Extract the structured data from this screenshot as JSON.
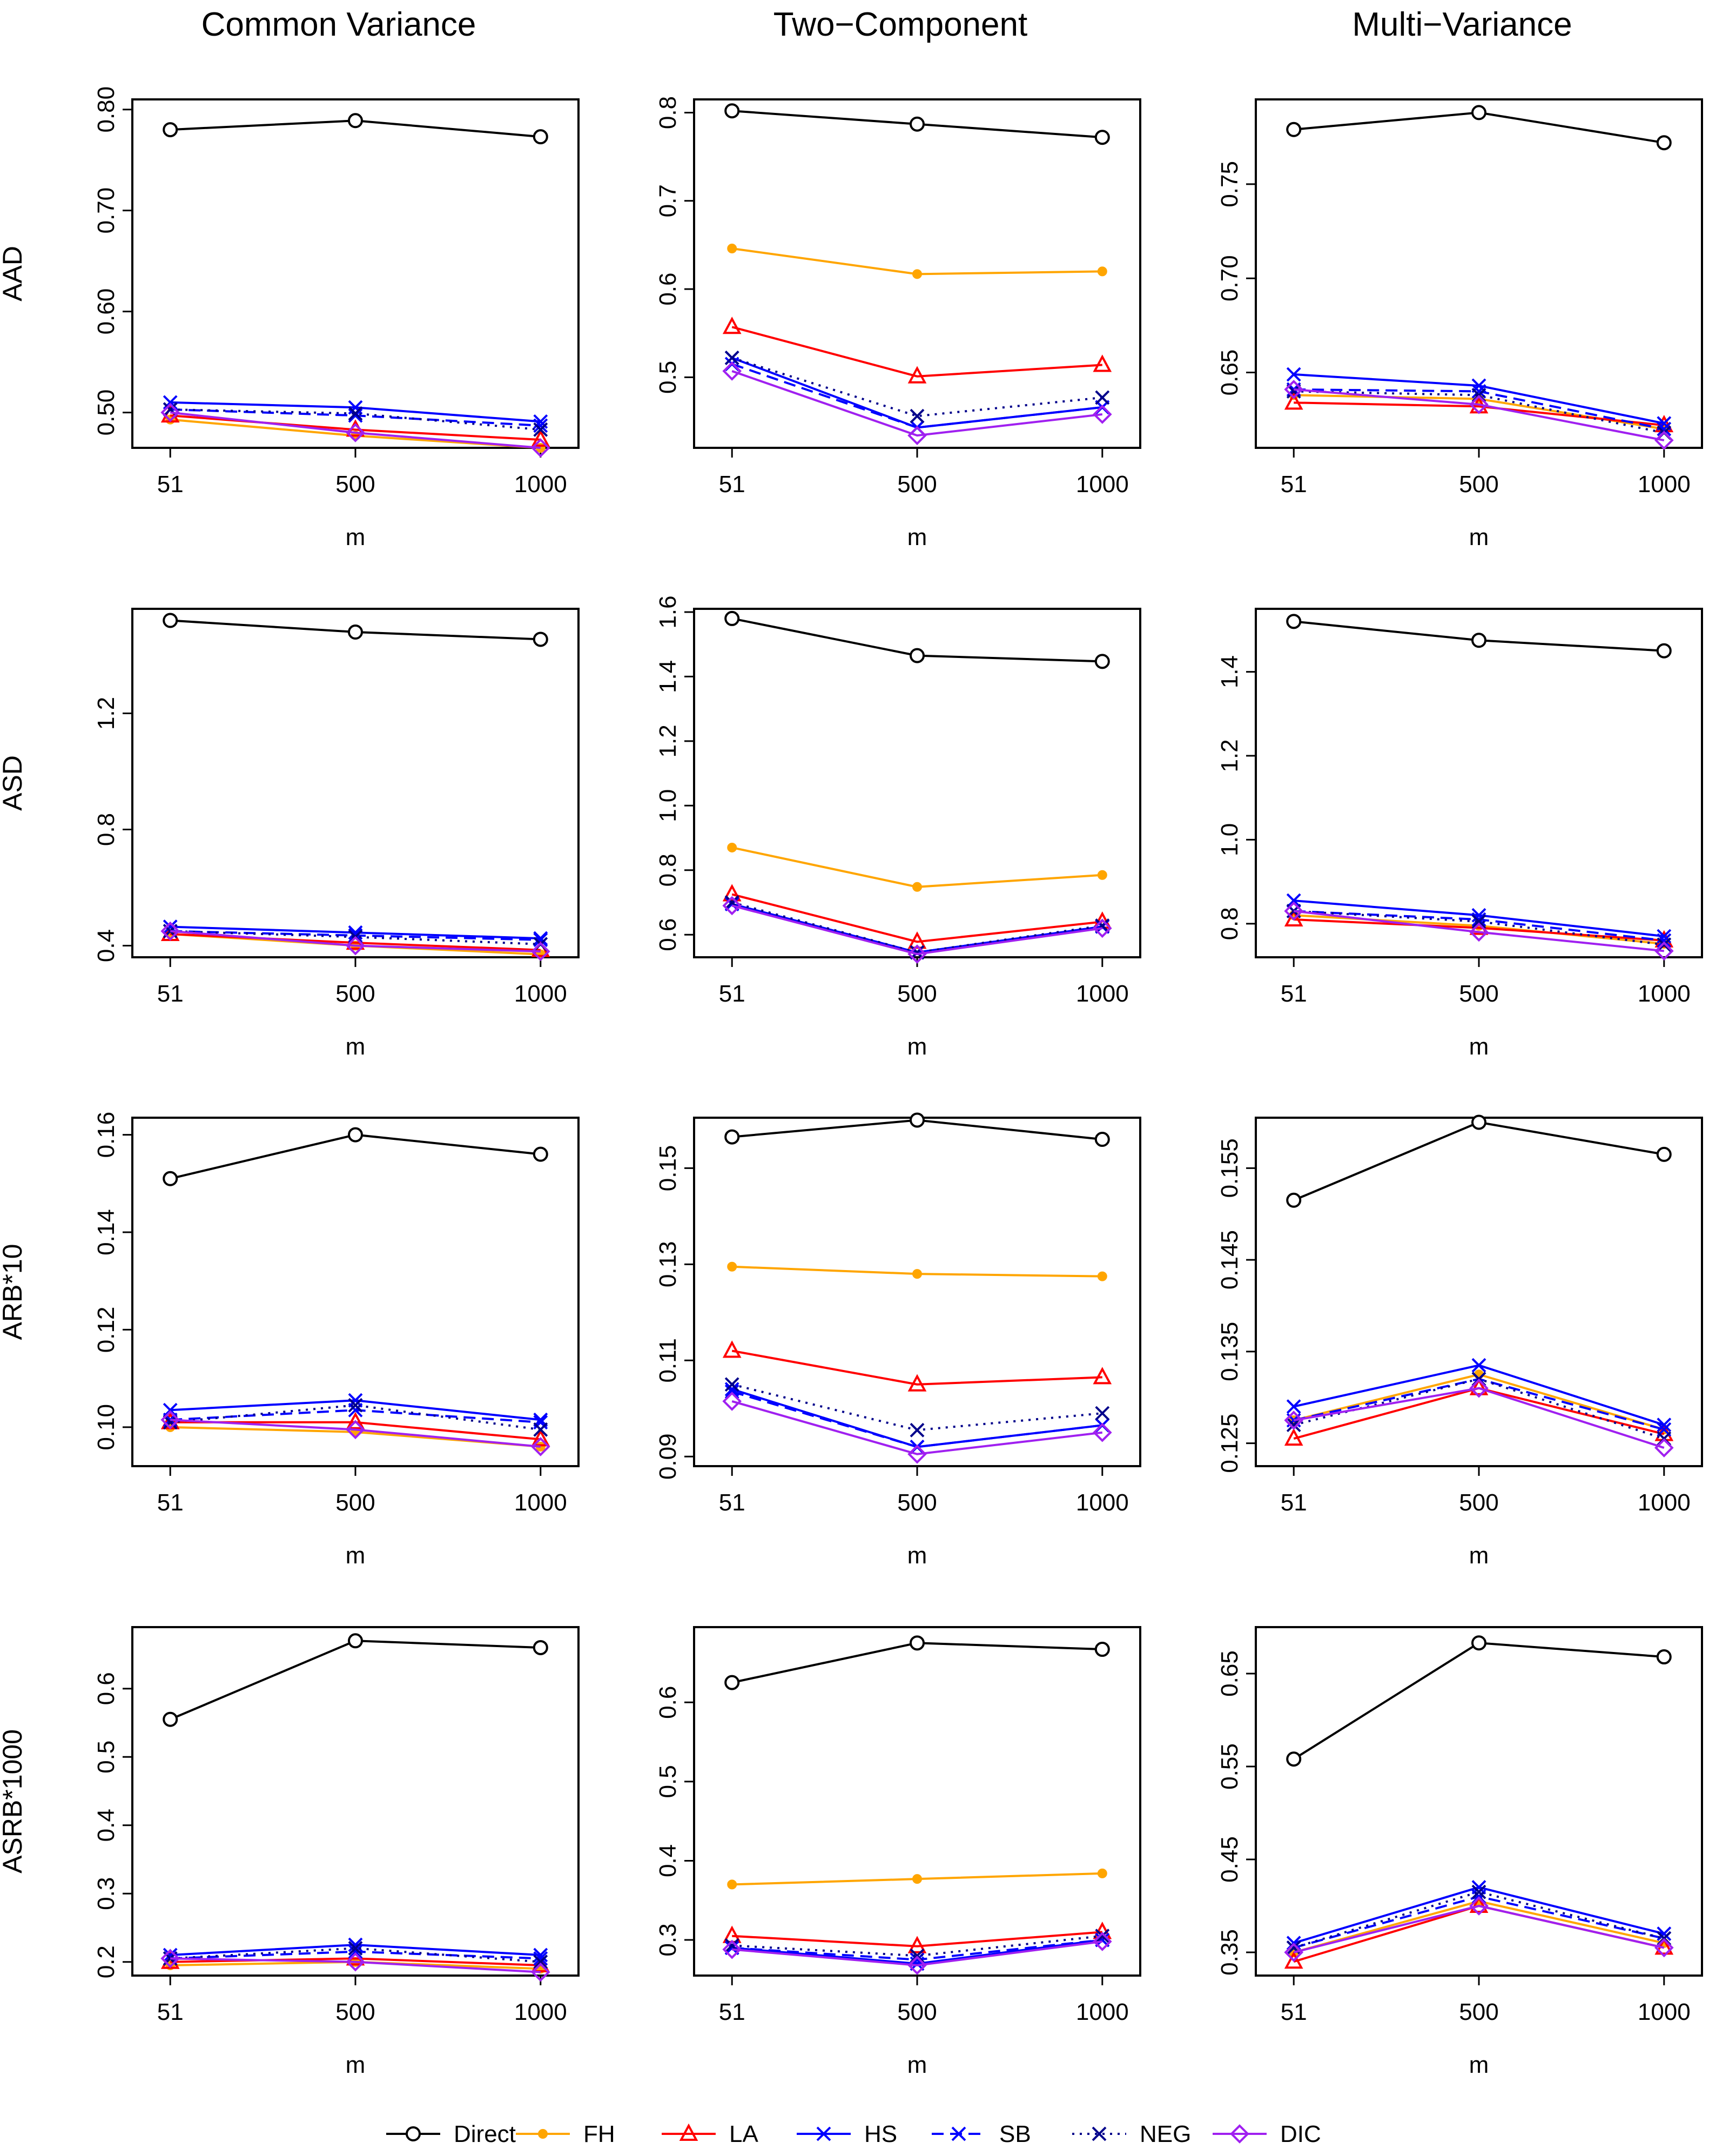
{
  "x_categories": [
    "51",
    "500",
    "1000"
  ],
  "x_label": "m",
  "column_titles": [
    "Common Variance",
    "Two−Component",
    "Multi−Variance"
  ],
  "row_labels": [
    "AAD",
    "ASD",
    "ARB*10",
    "ASRB*1000"
  ],
  "methods": [
    {
      "name": "Direct",
      "color": "#000000",
      "dash": "solid",
      "marker": "circle"
    },
    {
      "name": "FH",
      "color": "#FFA500",
      "dash": "solid",
      "marker": "dot"
    },
    {
      "name": "LA",
      "color": "#FF0000",
      "dash": "solid",
      "marker": "triangle"
    },
    {
      "name": "HS",
      "color": "#0000FF",
      "dash": "solid",
      "marker": "x"
    },
    {
      "name": "SB",
      "color": "#0000FF",
      "dash": "dashed",
      "marker": "x"
    },
    {
      "name": "NEG",
      "color": "#00008B",
      "dash": "dotted",
      "marker": "x"
    },
    {
      "name": "DIC",
      "color": "#A020F0",
      "dash": "solid",
      "marker": "diamond"
    }
  ],
  "chart_data": [
    {
      "type": "line",
      "row": 0,
      "col": 0,
      "column_title": "Common Variance",
      "ylabel": "AAD",
      "xlabel": "m",
      "categories": [
        "51",
        "500",
        "1000"
      ],
      "ylim": [
        0.465,
        0.81
      ],
      "yticks": [
        0.5,
        0.6,
        0.7,
        0.8
      ],
      "ytick_labels": [
        "0.50",
        "0.60",
        "0.70",
        "0.80"
      ],
      "series": [
        {
          "name": "Direct",
          "values": [
            0.78,
            0.789,
            0.773
          ]
        },
        {
          "name": "FH",
          "values": [
            0.493,
            0.477,
            0.465
          ]
        },
        {
          "name": "LA",
          "values": [
            0.497,
            0.483,
            0.473
          ]
        },
        {
          "name": "HS",
          "values": [
            0.51,
            0.505,
            0.491
          ]
        },
        {
          "name": "SB",
          "values": [
            0.503,
            0.497,
            0.487
          ]
        },
        {
          "name": "NEG",
          "values": [
            0.503,
            0.499,
            0.483
          ]
        },
        {
          "name": "DIC",
          "values": [
            0.5,
            0.48,
            0.465
          ]
        }
      ]
    },
    {
      "type": "line",
      "row": 0,
      "col": 1,
      "column_title": "Two−Component",
      "ylabel": "AAD",
      "xlabel": "m",
      "categories": [
        "51",
        "500",
        "1000"
      ],
      "ylim": [
        0.42,
        0.815
      ],
      "yticks": [
        0.5,
        0.6,
        0.7,
        0.8
      ],
      "ytick_labels": [
        "0.5",
        "0.6",
        "0.7",
        "0.8"
      ],
      "series": [
        {
          "name": "Direct",
          "values": [
            0.802,
            0.787,
            0.772
          ]
        },
        {
          "name": "FH",
          "values": [
            0.646,
            0.617,
            0.62
          ]
        },
        {
          "name": "LA",
          "values": [
            0.557,
            0.501,
            0.514
          ]
        },
        {
          "name": "HS",
          "values": [
            0.522,
            0.443,
            0.466
          ]
        },
        {
          "name": "SB",
          "values": [
            0.515,
            0.443,
            0.466
          ]
        },
        {
          "name": "NEG",
          "values": [
            0.522,
            0.456,
            0.477
          ]
        },
        {
          "name": "DIC",
          "values": [
            0.507,
            0.434,
            0.458
          ]
        }
      ]
    },
    {
      "type": "line",
      "row": 0,
      "col": 2,
      "column_title": "Multi−Variance",
      "ylabel": "AAD",
      "xlabel": "m",
      "categories": [
        "51",
        "500",
        "1000"
      ],
      "ylim": [
        0.61,
        0.795
      ],
      "yticks": [
        0.65,
        0.7,
        0.75
      ],
      "ytick_labels": [
        "0.65",
        "0.70",
        "0.75"
      ],
      "series": [
        {
          "name": "Direct",
          "values": [
            0.779,
            0.788,
            0.772
          ]
        },
        {
          "name": "FH",
          "values": [
            0.638,
            0.636,
            0.62
          ]
        },
        {
          "name": "LA",
          "values": [
            0.634,
            0.632,
            0.622
          ]
        },
        {
          "name": "HS",
          "values": [
            0.649,
            0.643,
            0.623
          ]
        },
        {
          "name": "SB",
          "values": [
            0.641,
            0.64,
            0.62
          ]
        },
        {
          "name": "NEG",
          "values": [
            0.64,
            0.638,
            0.618
          ]
        },
        {
          "name": "DIC",
          "values": [
            0.641,
            0.633,
            0.614
          ]
        }
      ]
    },
    {
      "type": "line",
      "row": 1,
      "col": 0,
      "column_title": "Common Variance",
      "ylabel": "ASD",
      "xlabel": "m",
      "categories": [
        "51",
        "500",
        "1000"
      ],
      "ylim": [
        0.36,
        1.56
      ],
      "yticks": [
        0.4,
        0.8,
        1.2
      ],
      "ytick_labels": [
        "0.4",
        "0.8",
        "1.2"
      ],
      "series": [
        {
          "name": "Direct",
          "values": [
            1.52,
            1.48,
            1.455
          ]
        },
        {
          "name": "FH",
          "values": [
            0.44,
            0.4,
            0.37
          ]
        },
        {
          "name": "LA",
          "values": [
            0.44,
            0.41,
            0.385
          ]
        },
        {
          "name": "HS",
          "values": [
            0.465,
            0.445,
            0.425
          ]
        },
        {
          "name": "SB",
          "values": [
            0.45,
            0.435,
            0.42
          ]
        },
        {
          "name": "NEG",
          "values": [
            0.45,
            0.43,
            0.405
          ]
        },
        {
          "name": "DIC",
          "values": [
            0.45,
            0.4,
            0.38
          ]
        }
      ]
    },
    {
      "type": "line",
      "row": 1,
      "col": 1,
      "column_title": "Two−Component",
      "ylabel": "ASD",
      "xlabel": "m",
      "categories": [
        "51",
        "500",
        "1000"
      ],
      "ylim": [
        0.53,
        1.61
      ],
      "yticks": [
        0.6,
        0.8,
        1.0,
        1.2,
        1.4,
        1.6
      ],
      "ytick_labels": [
        "0.6",
        "0.8",
        "1.0",
        "1.2",
        "1.4",
        "1.6"
      ],
      "series": [
        {
          "name": "Direct",
          "values": [
            1.58,
            1.465,
            1.447
          ]
        },
        {
          "name": "FH",
          "values": [
            0.87,
            0.748,
            0.785
          ]
        },
        {
          "name": "LA",
          "values": [
            0.725,
            0.578,
            0.64
          ]
        },
        {
          "name": "HS",
          "values": [
            0.695,
            0.545,
            0.625
          ]
        },
        {
          "name": "SB",
          "values": [
            0.695,
            0.545,
            0.625
          ]
        },
        {
          "name": "NEG",
          "values": [
            0.7,
            0.545,
            0.628
          ]
        },
        {
          "name": "DIC",
          "values": [
            0.69,
            0.54,
            0.62
          ]
        }
      ]
    },
    {
      "type": "line",
      "row": 1,
      "col": 2,
      "column_title": "Multi−Variance",
      "ylabel": "ASD",
      "xlabel": "m",
      "categories": [
        "51",
        "500",
        "1000"
      ],
      "ylim": [
        0.72,
        1.55
      ],
      "yticks": [
        0.8,
        1.0,
        1.2,
        1.4
      ],
      "ytick_labels": [
        "0.8",
        "1.0",
        "1.2",
        "1.4"
      ],
      "series": [
        {
          "name": "Direct",
          "values": [
            1.52,
            1.475,
            1.45
          ]
        },
        {
          "name": "FH",
          "values": [
            0.82,
            0.795,
            0.752
          ]
        },
        {
          "name": "LA",
          "values": [
            0.81,
            0.79,
            0.76
          ]
        },
        {
          "name": "HS",
          "values": [
            0.855,
            0.82,
            0.77
          ]
        },
        {
          "name": "SB",
          "values": [
            0.83,
            0.81,
            0.76
          ]
        },
        {
          "name": "NEG",
          "values": [
            0.83,
            0.805,
            0.75
          ]
        },
        {
          "name": "DIC",
          "values": [
            0.83,
            0.78,
            0.735
          ]
        }
      ]
    },
    {
      "type": "line",
      "row": 2,
      "col": 0,
      "column_title": "Common Variance",
      "ylabel": "ARB*10",
      "xlabel": "m",
      "categories": [
        "51",
        "500",
        "1000"
      ],
      "ylim": [
        0.092,
        0.1635
      ],
      "yticks": [
        0.1,
        0.12,
        0.14,
        0.16
      ],
      "ytick_labels": [
        "0.10",
        "0.12",
        "0.14",
        "0.16"
      ],
      "series": [
        {
          "name": "Direct",
          "values": [
            0.151,
            0.16,
            0.156
          ]
        },
        {
          "name": "FH",
          "values": [
            0.1,
            0.099,
            0.096
          ]
        },
        {
          "name": "LA",
          "values": [
            0.101,
            0.101,
            0.0975
          ]
        },
        {
          "name": "HS",
          "values": [
            0.1035,
            0.1055,
            0.1015
          ]
        },
        {
          "name": "SB",
          "values": [
            0.1015,
            0.1035,
            0.101
          ]
        },
        {
          "name": "NEG",
          "values": [
            0.101,
            0.1045,
            0.0995
          ]
        },
        {
          "name": "DIC",
          "values": [
            0.1015,
            0.0995,
            0.096
          ]
        }
      ]
    },
    {
      "type": "line",
      "row": 2,
      "col": 1,
      "column_title": "Two−Component",
      "ylabel": "ARB*10",
      "xlabel": "m",
      "categories": [
        "51",
        "500",
        "1000"
      ],
      "ylim": [
        0.088,
        0.1605
      ],
      "yticks": [
        0.09,
        0.11,
        0.13,
        0.15
      ],
      "ytick_labels": [
        "0.09",
        "0.11",
        "0.13",
        "0.15"
      ],
      "series": [
        {
          "name": "Direct",
          "values": [
            0.1565,
            0.16,
            0.156
          ]
        },
        {
          "name": "FH",
          "values": [
            0.1295,
            0.128,
            0.1275
          ]
        },
        {
          "name": "LA",
          "values": [
            0.112,
            0.105,
            0.1065
          ]
        },
        {
          "name": "HS",
          "values": [
            0.104,
            0.092,
            0.0965
          ]
        },
        {
          "name": "SB",
          "values": [
            0.1035,
            0.092,
            0.0965
          ]
        },
        {
          "name": "NEG",
          "values": [
            0.105,
            0.0955,
            0.099
          ]
        },
        {
          "name": "DIC",
          "values": [
            0.1015,
            0.0905,
            0.095
          ]
        }
      ]
    },
    {
      "type": "line",
      "row": 2,
      "col": 2,
      "column_title": "Multi−Variance",
      "ylabel": "ARB*10",
      "xlabel": "m",
      "categories": [
        "51",
        "500",
        "1000"
      ],
      "ylim": [
        0.1225,
        0.1605
      ],
      "yticks": [
        0.125,
        0.135,
        0.145,
        0.155
      ],
      "ytick_labels": [
        "0.125",
        "0.135",
        "0.145",
        "0.155"
      ],
      "series": [
        {
          "name": "Direct",
          "values": [
            0.1515,
            0.16,
            0.1565
          ]
        },
        {
          "name": "FH",
          "values": [
            0.1275,
            0.1325,
            0.1265
          ]
        },
        {
          "name": "LA",
          "values": [
            0.1255,
            0.131,
            0.126
          ]
        },
        {
          "name": "HS",
          "values": [
            0.129,
            0.1335,
            0.127
          ]
        },
        {
          "name": "SB",
          "values": [
            0.1275,
            0.132,
            0.1265
          ]
        },
        {
          "name": "NEG",
          "values": [
            0.127,
            0.132,
            0.1255
          ]
        },
        {
          "name": "DIC",
          "values": [
            0.1275,
            0.131,
            0.1245
          ]
        }
      ]
    },
    {
      "type": "line",
      "row": 3,
      "col": 0,
      "column_title": "Common Variance",
      "ylabel": "ASRB*1000",
      "xlabel": "m",
      "categories": [
        "51",
        "500",
        "1000"
      ],
      "ylim": [
        0.18,
        0.69
      ],
      "yticks": [
        0.2,
        0.3,
        0.4,
        0.5,
        0.6
      ],
      "ytick_labels": [
        "0.2",
        "0.3",
        "0.4",
        "0.5",
        "0.6"
      ],
      "series": [
        {
          "name": "Direct",
          "values": [
            0.555,
            0.67,
            0.66
          ]
        },
        {
          "name": "FH",
          "values": [
            0.195,
            0.2,
            0.19
          ]
        },
        {
          "name": "LA",
          "values": [
            0.2,
            0.205,
            0.195
          ]
        },
        {
          "name": "HS",
          "values": [
            0.21,
            0.225,
            0.21
          ]
        },
        {
          "name": "SB",
          "values": [
            0.205,
            0.215,
            0.205
          ]
        },
        {
          "name": "NEG",
          "values": [
            0.205,
            0.22,
            0.2
          ]
        },
        {
          "name": "DIC",
          "values": [
            0.205,
            0.2,
            0.185
          ]
        }
      ]
    },
    {
      "type": "line",
      "row": 3,
      "col": 1,
      "column_title": "Two−Component",
      "ylabel": "ASRB*1000",
      "xlabel": "m",
      "categories": [
        "51",
        "500",
        "1000"
      ],
      "ylim": [
        0.255,
        0.695
      ],
      "yticks": [
        0.3,
        0.4,
        0.5,
        0.6
      ],
      "ytick_labels": [
        "0.3",
        "0.4",
        "0.5",
        "0.6"
      ],
      "series": [
        {
          "name": "Direct",
          "values": [
            0.625,
            0.675,
            0.667
          ]
        },
        {
          "name": "FH",
          "values": [
            0.37,
            0.377,
            0.384
          ]
        },
        {
          "name": "LA",
          "values": [
            0.305,
            0.292,
            0.31
          ]
        },
        {
          "name": "HS",
          "values": [
            0.29,
            0.27,
            0.3
          ]
        },
        {
          "name": "SB",
          "values": [
            0.29,
            0.275,
            0.3
          ]
        },
        {
          "name": "NEG",
          "values": [
            0.293,
            0.28,
            0.305
          ]
        },
        {
          "name": "DIC",
          "values": [
            0.288,
            0.268,
            0.298
          ]
        }
      ]
    },
    {
      "type": "line",
      "row": 3,
      "col": 2,
      "column_title": "Multi−Variance",
      "ylabel": "ASRB*1000",
      "xlabel": "m",
      "categories": [
        "51",
        "500",
        "1000"
      ],
      "ylim": [
        0.325,
        0.7
      ],
      "yticks": [
        0.35,
        0.45,
        0.55,
        0.65
      ],
      "ytick_labels": [
        "0.35",
        "0.45",
        "0.55",
        "0.65"
      ],
      "series": [
        {
          "name": "Direct",
          "values": [
            0.558,
            0.683,
            0.668
          ]
        },
        {
          "name": "FH",
          "values": [
            0.35,
            0.405,
            0.36
          ]
        },
        {
          "name": "LA",
          "values": [
            0.34,
            0.4,
            0.355
          ]
        },
        {
          "name": "HS",
          "values": [
            0.36,
            0.42,
            0.37
          ]
        },
        {
          "name": "SB",
          "values": [
            0.355,
            0.41,
            0.365
          ]
        },
        {
          "name": "NEG",
          "values": [
            0.355,
            0.415,
            0.365
          ]
        },
        {
          "name": "DIC",
          "values": [
            0.35,
            0.4,
            0.355
          ]
        }
      ]
    }
  ]
}
